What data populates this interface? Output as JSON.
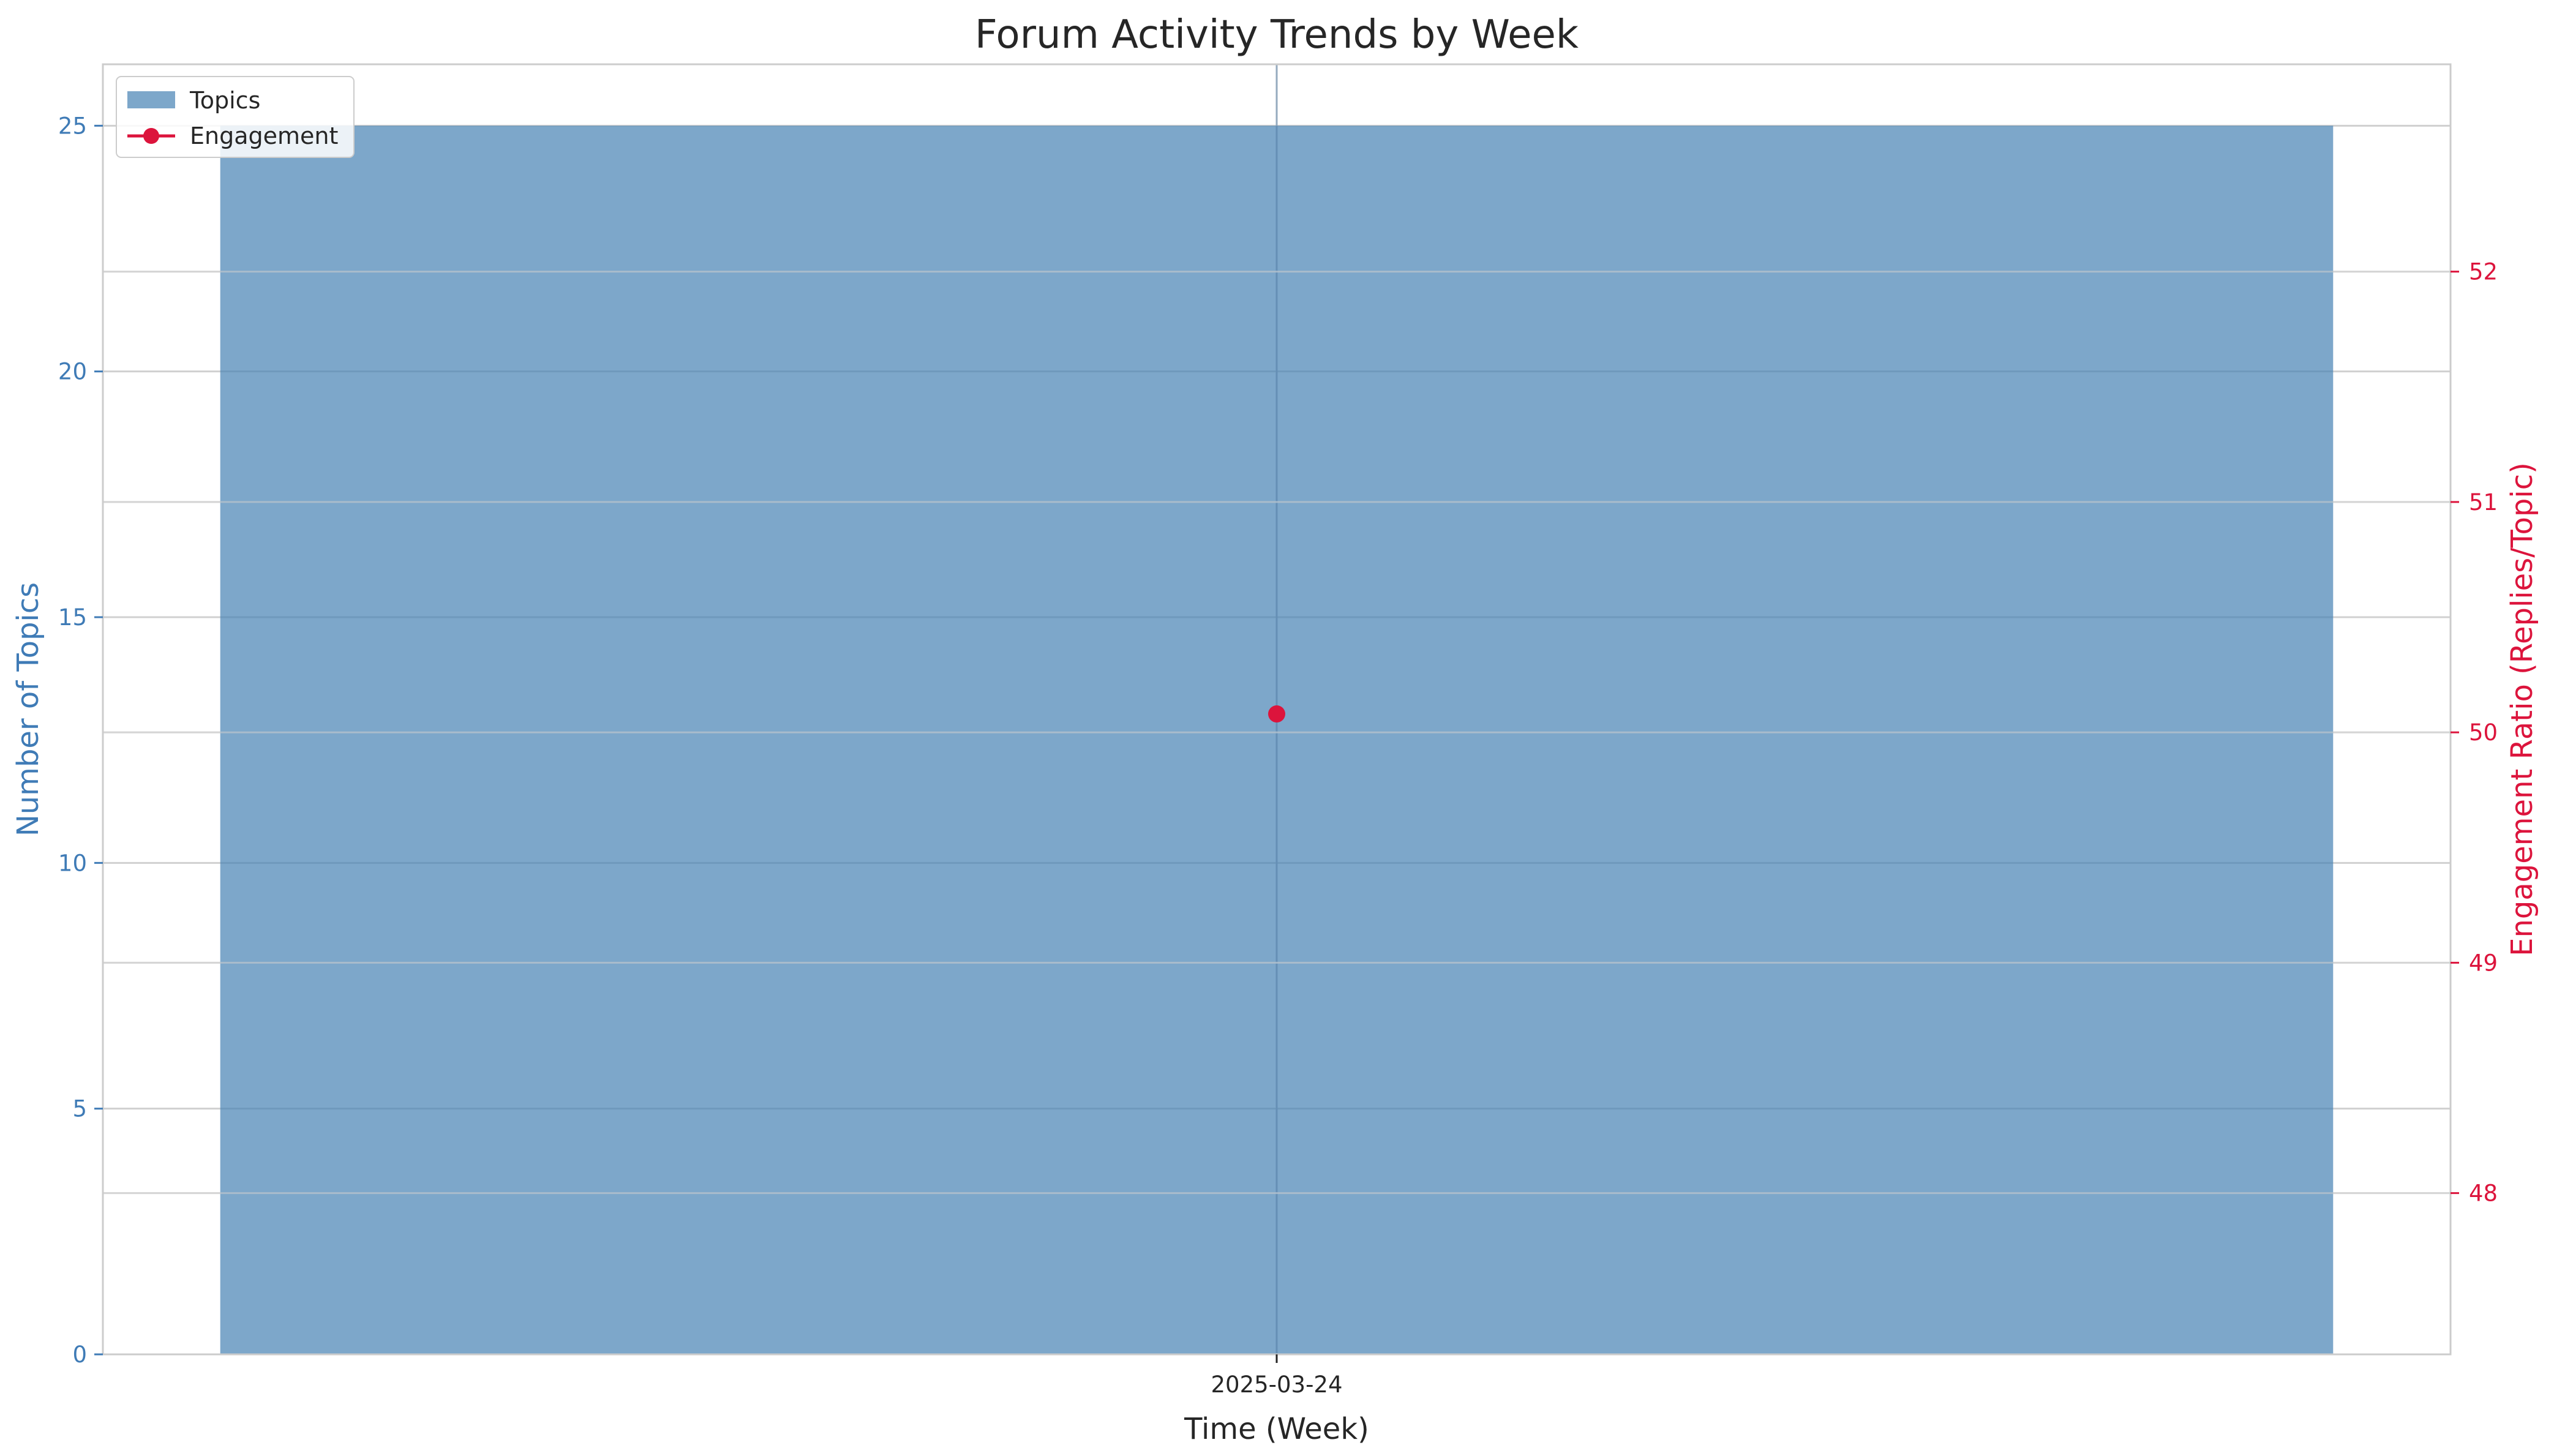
{
  "chart_data": {
    "type": "bar",
    "title": "Forum Activity Trends by Week",
    "xlabel": "Time (Week)",
    "categories": [
      "2025-03-24"
    ],
    "series": [
      {
        "name": "Topics",
        "type": "bar",
        "axis": "left",
        "values": [
          25
        ],
        "color": "#4682b4"
      },
      {
        "name": "Engagement",
        "type": "line",
        "axis": "right",
        "values": [
          50.08
        ],
        "color": "#dc143c"
      }
    ],
    "y_left": {
      "label": "Number of Topics",
      "range": [
        0,
        26.25
      ],
      "ticks": [
        0,
        5,
        10,
        15,
        20,
        25
      ],
      "color": "#3f7bb6"
    },
    "y_right": {
      "label": "Engagement Ratio (Replies/Topic)",
      "range": [
        47.3,
        52.9
      ],
      "ticks": [
        48,
        49,
        50,
        51,
        52
      ],
      "color": "#dc143c"
    },
    "grid": true,
    "legend_position": "top-left"
  }
}
